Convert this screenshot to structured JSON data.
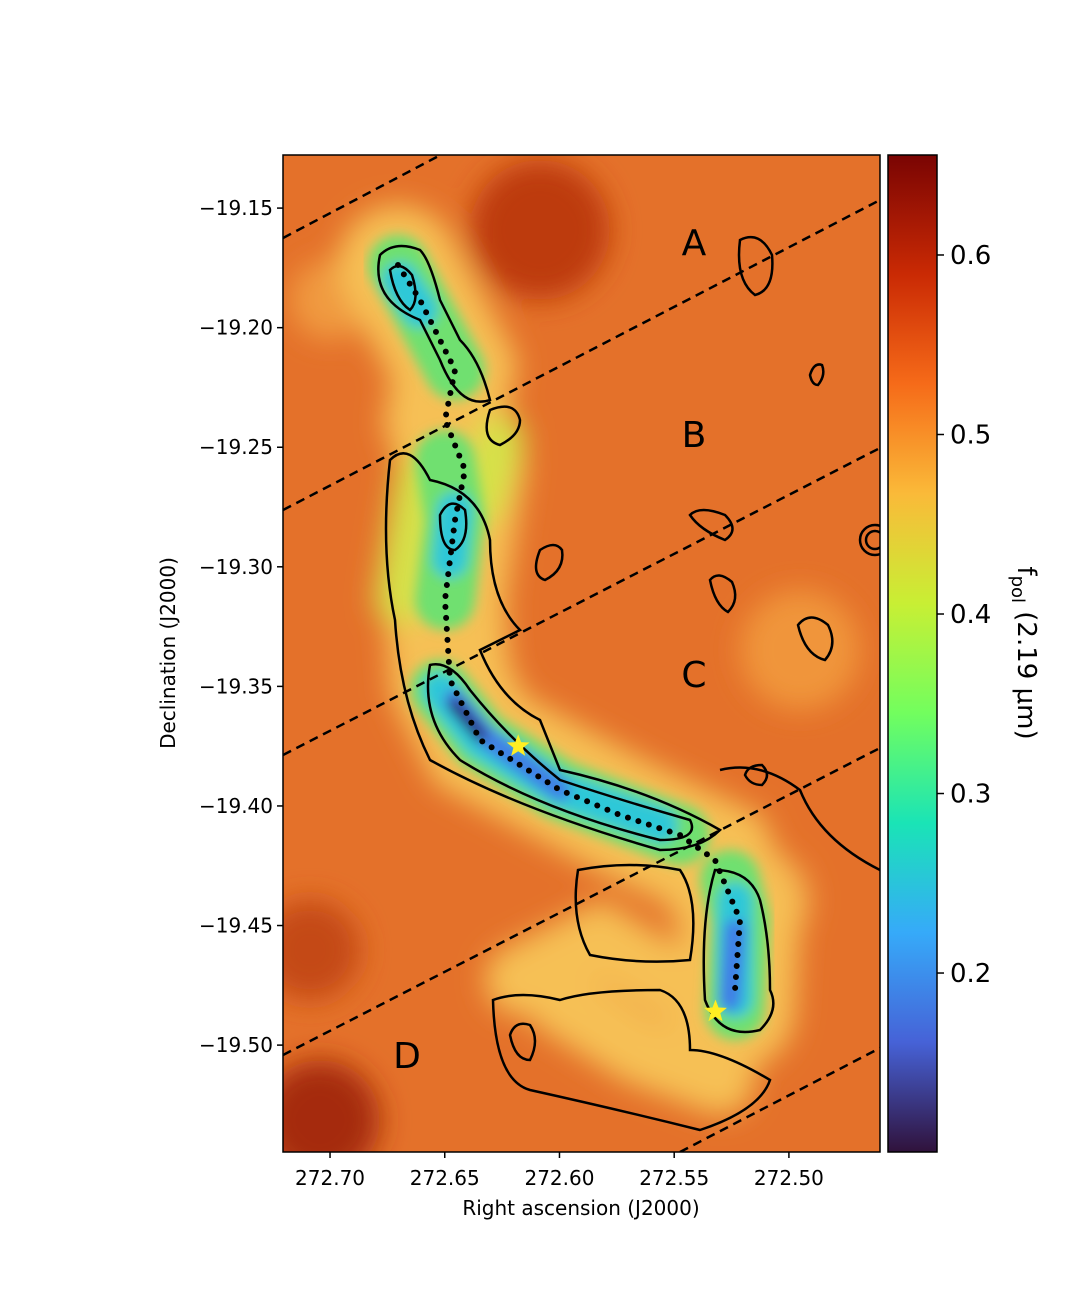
{
  "chart_data": {
    "type": "heatmap",
    "xlabel": "Right ascension (J2000)",
    "ylabel": "Declination (J2000)",
    "xlim": [
      272.7205,
      272.4603
    ],
    "ylim": [
      -19.5447,
      -19.1278
    ],
    "xticks": [
      {
        "value": 272.7,
        "label": "272.70"
      },
      {
        "value": 272.65,
        "label": "272.65"
      },
      {
        "value": 272.6,
        "label": "272.60"
      },
      {
        "value": 272.55,
        "label": "272.55"
      },
      {
        "value": 272.5,
        "label": "272.50"
      }
    ],
    "yticks": [
      {
        "value": -19.15,
        "label": "−19.15"
      },
      {
        "value": -19.2,
        "label": "−19.20"
      },
      {
        "value": -19.25,
        "label": "−19.25"
      },
      {
        "value": -19.3,
        "label": "−19.30"
      },
      {
        "value": -19.35,
        "label": "−19.35"
      },
      {
        "value": -19.4,
        "label": "−19.40"
      },
      {
        "value": -19.45,
        "label": "−19.45"
      },
      {
        "value": -19.5,
        "label": "−19.50"
      }
    ],
    "colorbar": {
      "label": {
        "symbol": "f",
        "subscript": "pol",
        "rest": " (2.19 μm)"
      },
      "lim": [
        0.1003,
        0.6557
      ],
      "ticks": [
        0.2,
        0.3,
        0.4,
        0.5,
        0.6
      ]
    },
    "region_labels": [
      "A",
      "B",
      "C",
      "D"
    ],
    "stars": {
      "x": [
        272.618,
        272.532
      ],
      "y": [
        -19.375,
        -19.486
      ],
      "color": "#ffee22"
    }
  }
}
